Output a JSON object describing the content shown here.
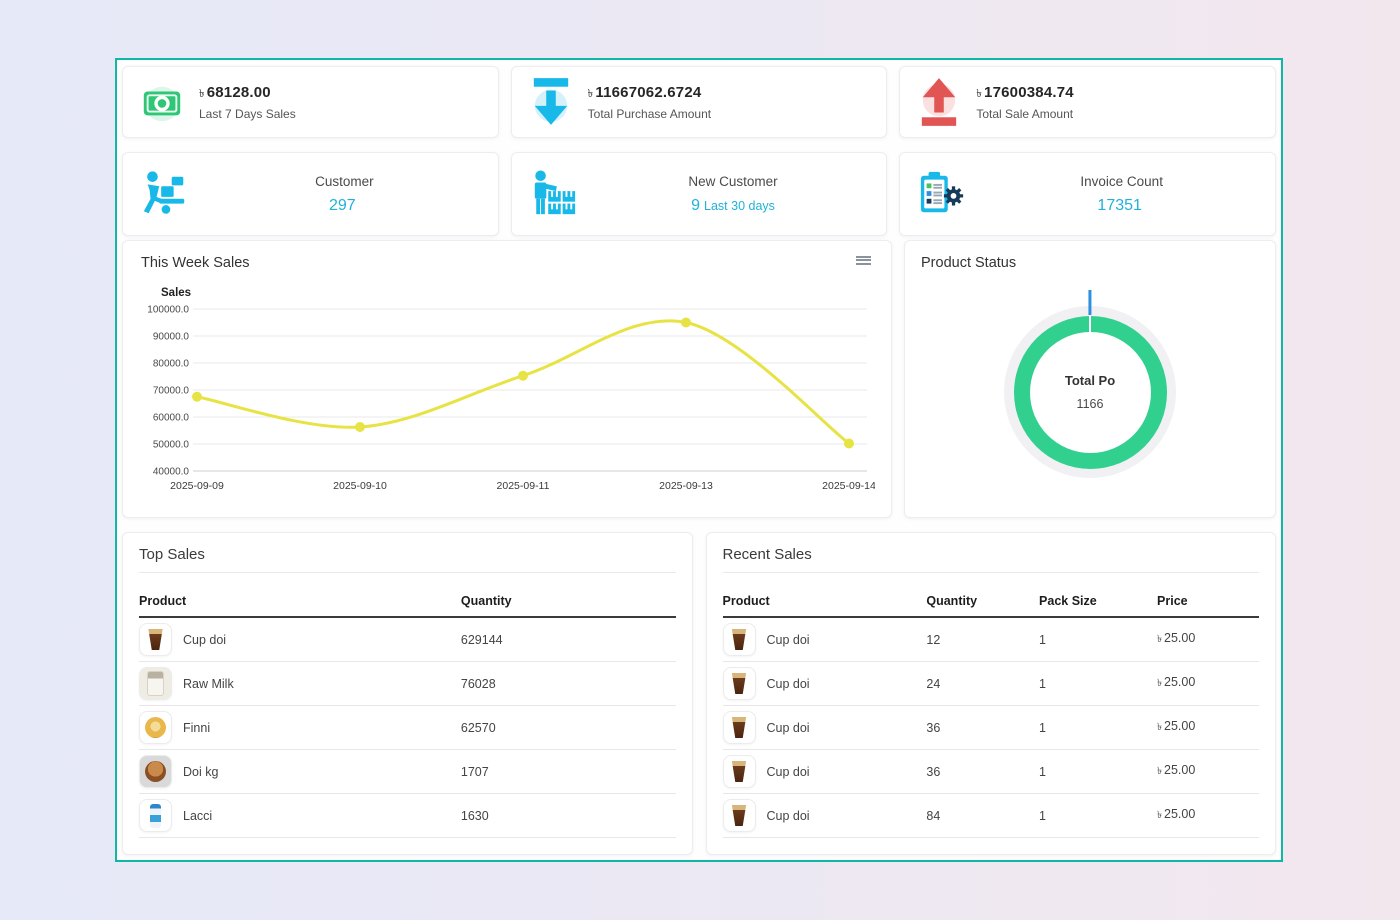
{
  "theme": {
    "container_border": "#0fb8a5",
    "bg_left": "#e6e9f8",
    "bg_right": "#f3e7ee",
    "accent_cyan": "#1fb2d9",
    "icon_green": "#2fc775",
    "icon_cyan": "#18b9e8",
    "icon_red": "#e25555"
  },
  "stats_row1": [
    {
      "icon": "money-icon",
      "currency": "৳",
      "value": "68128.00",
      "label": "Last 7 Days Sales"
    },
    {
      "icon": "arrow-down-icon",
      "currency": "৳",
      "value": "11667062.6724",
      "label": "Total Purchase Amount"
    },
    {
      "icon": "arrow-up-icon",
      "currency": "৳",
      "value": "17600384.74",
      "label": "Total Sale Amount"
    }
  ],
  "stats_row2": [
    {
      "icon": "customer-cart-icon",
      "label": "Customer",
      "value": "297",
      "suffix": ""
    },
    {
      "icon": "new-customer-icon",
      "label": "New Customer",
      "value": "9",
      "suffix": "Last 30 days"
    },
    {
      "icon": "invoice-icon",
      "label": "Invoice Count",
      "value": "17351",
      "suffix": ""
    }
  ],
  "week_sales_card": {
    "title": "This Week Sales",
    "menu_icon": "hamburger-menu-icon"
  },
  "product_status_card": {
    "title": "Product Status",
    "center_label": "Total Po",
    "center_value": "1166"
  },
  "chart_data": [
    {
      "type": "line",
      "title": "Sales",
      "x": [
        "2025-09-09",
        "2025-09-10",
        "2025-09-11",
        "2025-09-13",
        "2025-09-14"
      ],
      "values": [
        67500,
        56300,
        75300,
        95000,
        50200
      ],
      "ylim": [
        40000,
        100000
      ],
      "ytick_step": 10000,
      "ytick_format": "#.0",
      "line_color": "#e8e345",
      "marker_color": "#e8e345",
      "grid": true,
      "legend": "none"
    },
    {
      "type": "pie",
      "title": "Product Status",
      "center_label": "Total Po",
      "center_value": "1166",
      "segments": [
        {
          "name": "green",
          "color": "#31d08f",
          "fraction": 0.995
        },
        {
          "name": "blue",
          "color": "#2e8fdf",
          "fraction": 0.005
        }
      ]
    }
  ],
  "top_sales": {
    "title": "Top Sales",
    "columns": [
      "Product",
      "Quantity"
    ],
    "rows": [
      {
        "product": "Cup doi",
        "image": "cup-doi",
        "quantity": "629144"
      },
      {
        "product": "Raw Milk",
        "image": "raw-milk",
        "quantity": "76028"
      },
      {
        "product": "Finni",
        "image": "finni",
        "quantity": "62570"
      },
      {
        "product": "Doi kg",
        "image": "doi-kg",
        "quantity": "1707"
      },
      {
        "product": "Lacci",
        "image": "lacci",
        "quantity": "1630"
      }
    ]
  },
  "recent_sales": {
    "title": "Recent Sales",
    "columns": [
      "Product",
      "Quantity",
      "Pack Size",
      "Price"
    ],
    "currency": "৳",
    "rows": [
      {
        "product": "Cup doi",
        "image": "cup-doi",
        "quantity": "12",
        "pack_size": "1",
        "price": "25.00"
      },
      {
        "product": "Cup doi",
        "image": "cup-doi",
        "quantity": "24",
        "pack_size": "1",
        "price": "25.00"
      },
      {
        "product": "Cup doi",
        "image": "cup-doi",
        "quantity": "36",
        "pack_size": "1",
        "price": "25.00"
      },
      {
        "product": "Cup doi",
        "image": "cup-doi",
        "quantity": "36",
        "pack_size": "1",
        "price": "25.00"
      },
      {
        "product": "Cup doi",
        "image": "cup-doi",
        "quantity": "84",
        "pack_size": "1",
        "price": "25.00"
      }
    ]
  }
}
